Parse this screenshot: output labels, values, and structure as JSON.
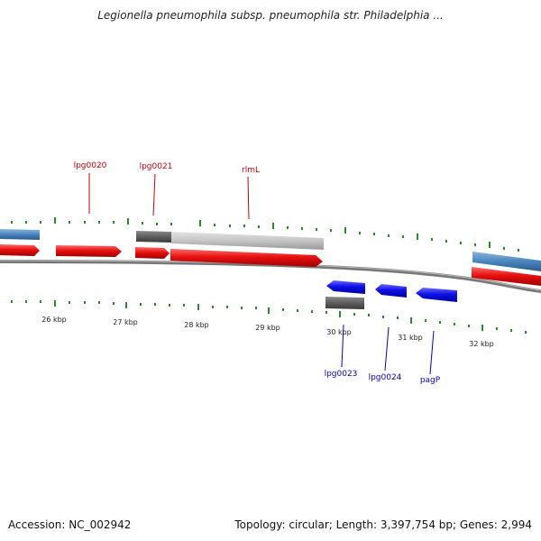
{
  "header": {
    "title": "Legionella pneumophila subsp. pneumophila str. Philadelphia ..."
  },
  "footer": {
    "accession": "Accession: NC_002942",
    "topology": "Topology: circular; Length: 3,397,754 bp; Genes: 2,994"
  },
  "colors": {
    "forward_gene": "#e81010",
    "reverse_gene": "#1010e8",
    "forward_label": "#cc0000",
    "reverse_label": "#0000cc",
    "ticks": "#2a8a2a",
    "backbone": "#777777",
    "gray_feature": "#bdbdbd",
    "dark_feature": "#666666",
    "steel_feature": "#4a86c0"
  },
  "axis": {
    "tick_labels": [
      "26 kbp",
      "27 kbp",
      "28 kbp",
      "29 kbp",
      "30 kbp",
      "31 kbp",
      "32 kbp"
    ]
  },
  "genes": {
    "forward": [
      {
        "name": "lpg0020"
      },
      {
        "name": "lpg0021"
      },
      {
        "name": "rlmL"
      }
    ],
    "reverse": [
      {
        "name": "lpg0023"
      },
      {
        "name": "lpg0024"
      },
      {
        "name": "pagP"
      }
    ]
  }
}
